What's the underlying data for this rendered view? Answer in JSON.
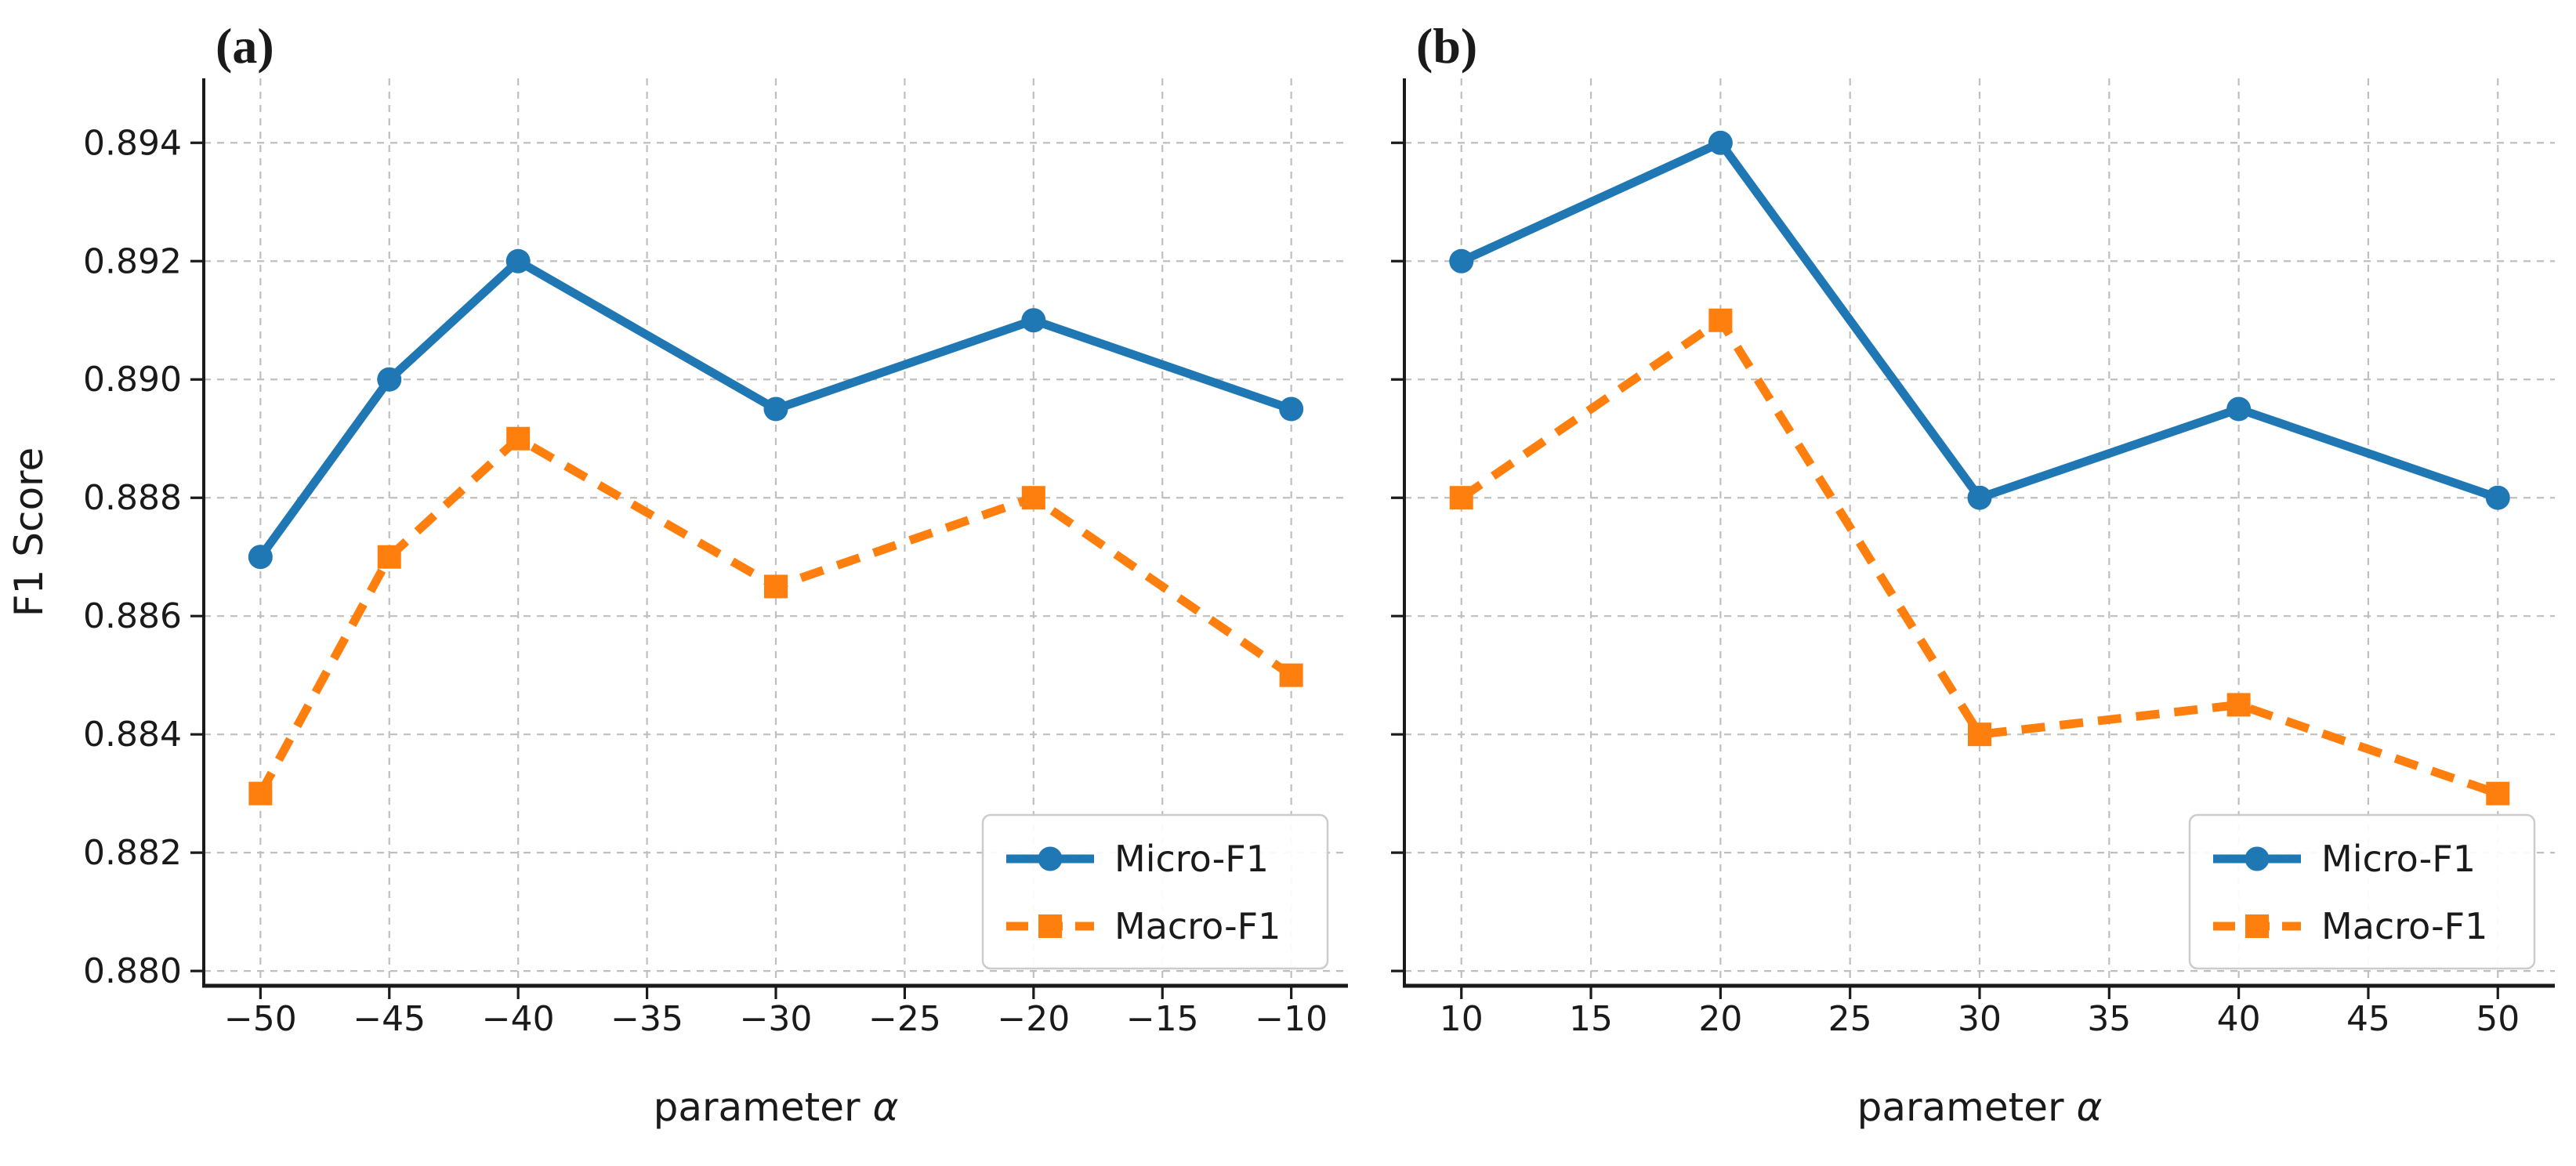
{
  "figure": {
    "background": "#ffffff",
    "grid_color": "#bfbfbf",
    "spine_color": "#1a1a1a",
    "text_color": "#1a1a1a",
    "legend_border_color": "#cccccc"
  },
  "chart_data": [
    {
      "type": "line",
      "title": "(a)",
      "xlabel": "parameter α",
      "ylabel": "F1 Score",
      "x": [
        -50,
        -45,
        -40,
        -30,
        -20,
        -10
      ],
      "xticks": [
        -50,
        -45,
        -40,
        -35,
        -30,
        -25,
        -20,
        -15,
        -10
      ],
      "yticks": [
        0.88,
        0.882,
        0.884,
        0.886,
        0.888,
        0.89,
        0.892,
        0.894
      ],
      "ytick_labels": true,
      "xlim": [
        -52.2,
        -7.8
      ],
      "ylim": [
        0.87975,
        0.89509
      ],
      "grid": true,
      "legend_position": "lower-right",
      "series": [
        {
          "name": "Micro-F1",
          "color": "#1f77b4",
          "linestyle": "solid",
          "marker": "circle",
          "values": [
            0.887,
            0.89,
            0.892,
            0.8895,
            0.891,
            0.8895
          ]
        },
        {
          "name": "Macro-F1",
          "color": "#ff7f0e",
          "linestyle": "dashed",
          "marker": "square",
          "values": [
            0.883,
            0.887,
            0.889,
            0.8865,
            0.888,
            0.885
          ]
        }
      ]
    },
    {
      "type": "line",
      "title": "(b)",
      "xlabel": "parameter α",
      "ylabel": "",
      "x": [
        10,
        20,
        30,
        40,
        50
      ],
      "xticks": [
        10,
        15,
        20,
        25,
        30,
        35,
        40,
        45,
        50
      ],
      "yticks": [
        0.88,
        0.882,
        0.884,
        0.886,
        0.888,
        0.89,
        0.892,
        0.894
      ],
      "ytick_labels": false,
      "xlim": [
        7.8,
        52.2
      ],
      "ylim": [
        0.87975,
        0.89509
      ],
      "grid": true,
      "legend_position": "lower-right",
      "series": [
        {
          "name": "Micro-F1",
          "color": "#1f77b4",
          "linestyle": "solid",
          "marker": "circle",
          "values": [
            0.892,
            0.894,
            0.888,
            0.8895,
            0.888
          ]
        },
        {
          "name": "Macro-F1",
          "color": "#ff7f0e",
          "linestyle": "dashed",
          "marker": "square",
          "values": [
            0.888,
            0.891,
            0.884,
            0.8845,
            0.883
          ]
        }
      ]
    }
  ]
}
